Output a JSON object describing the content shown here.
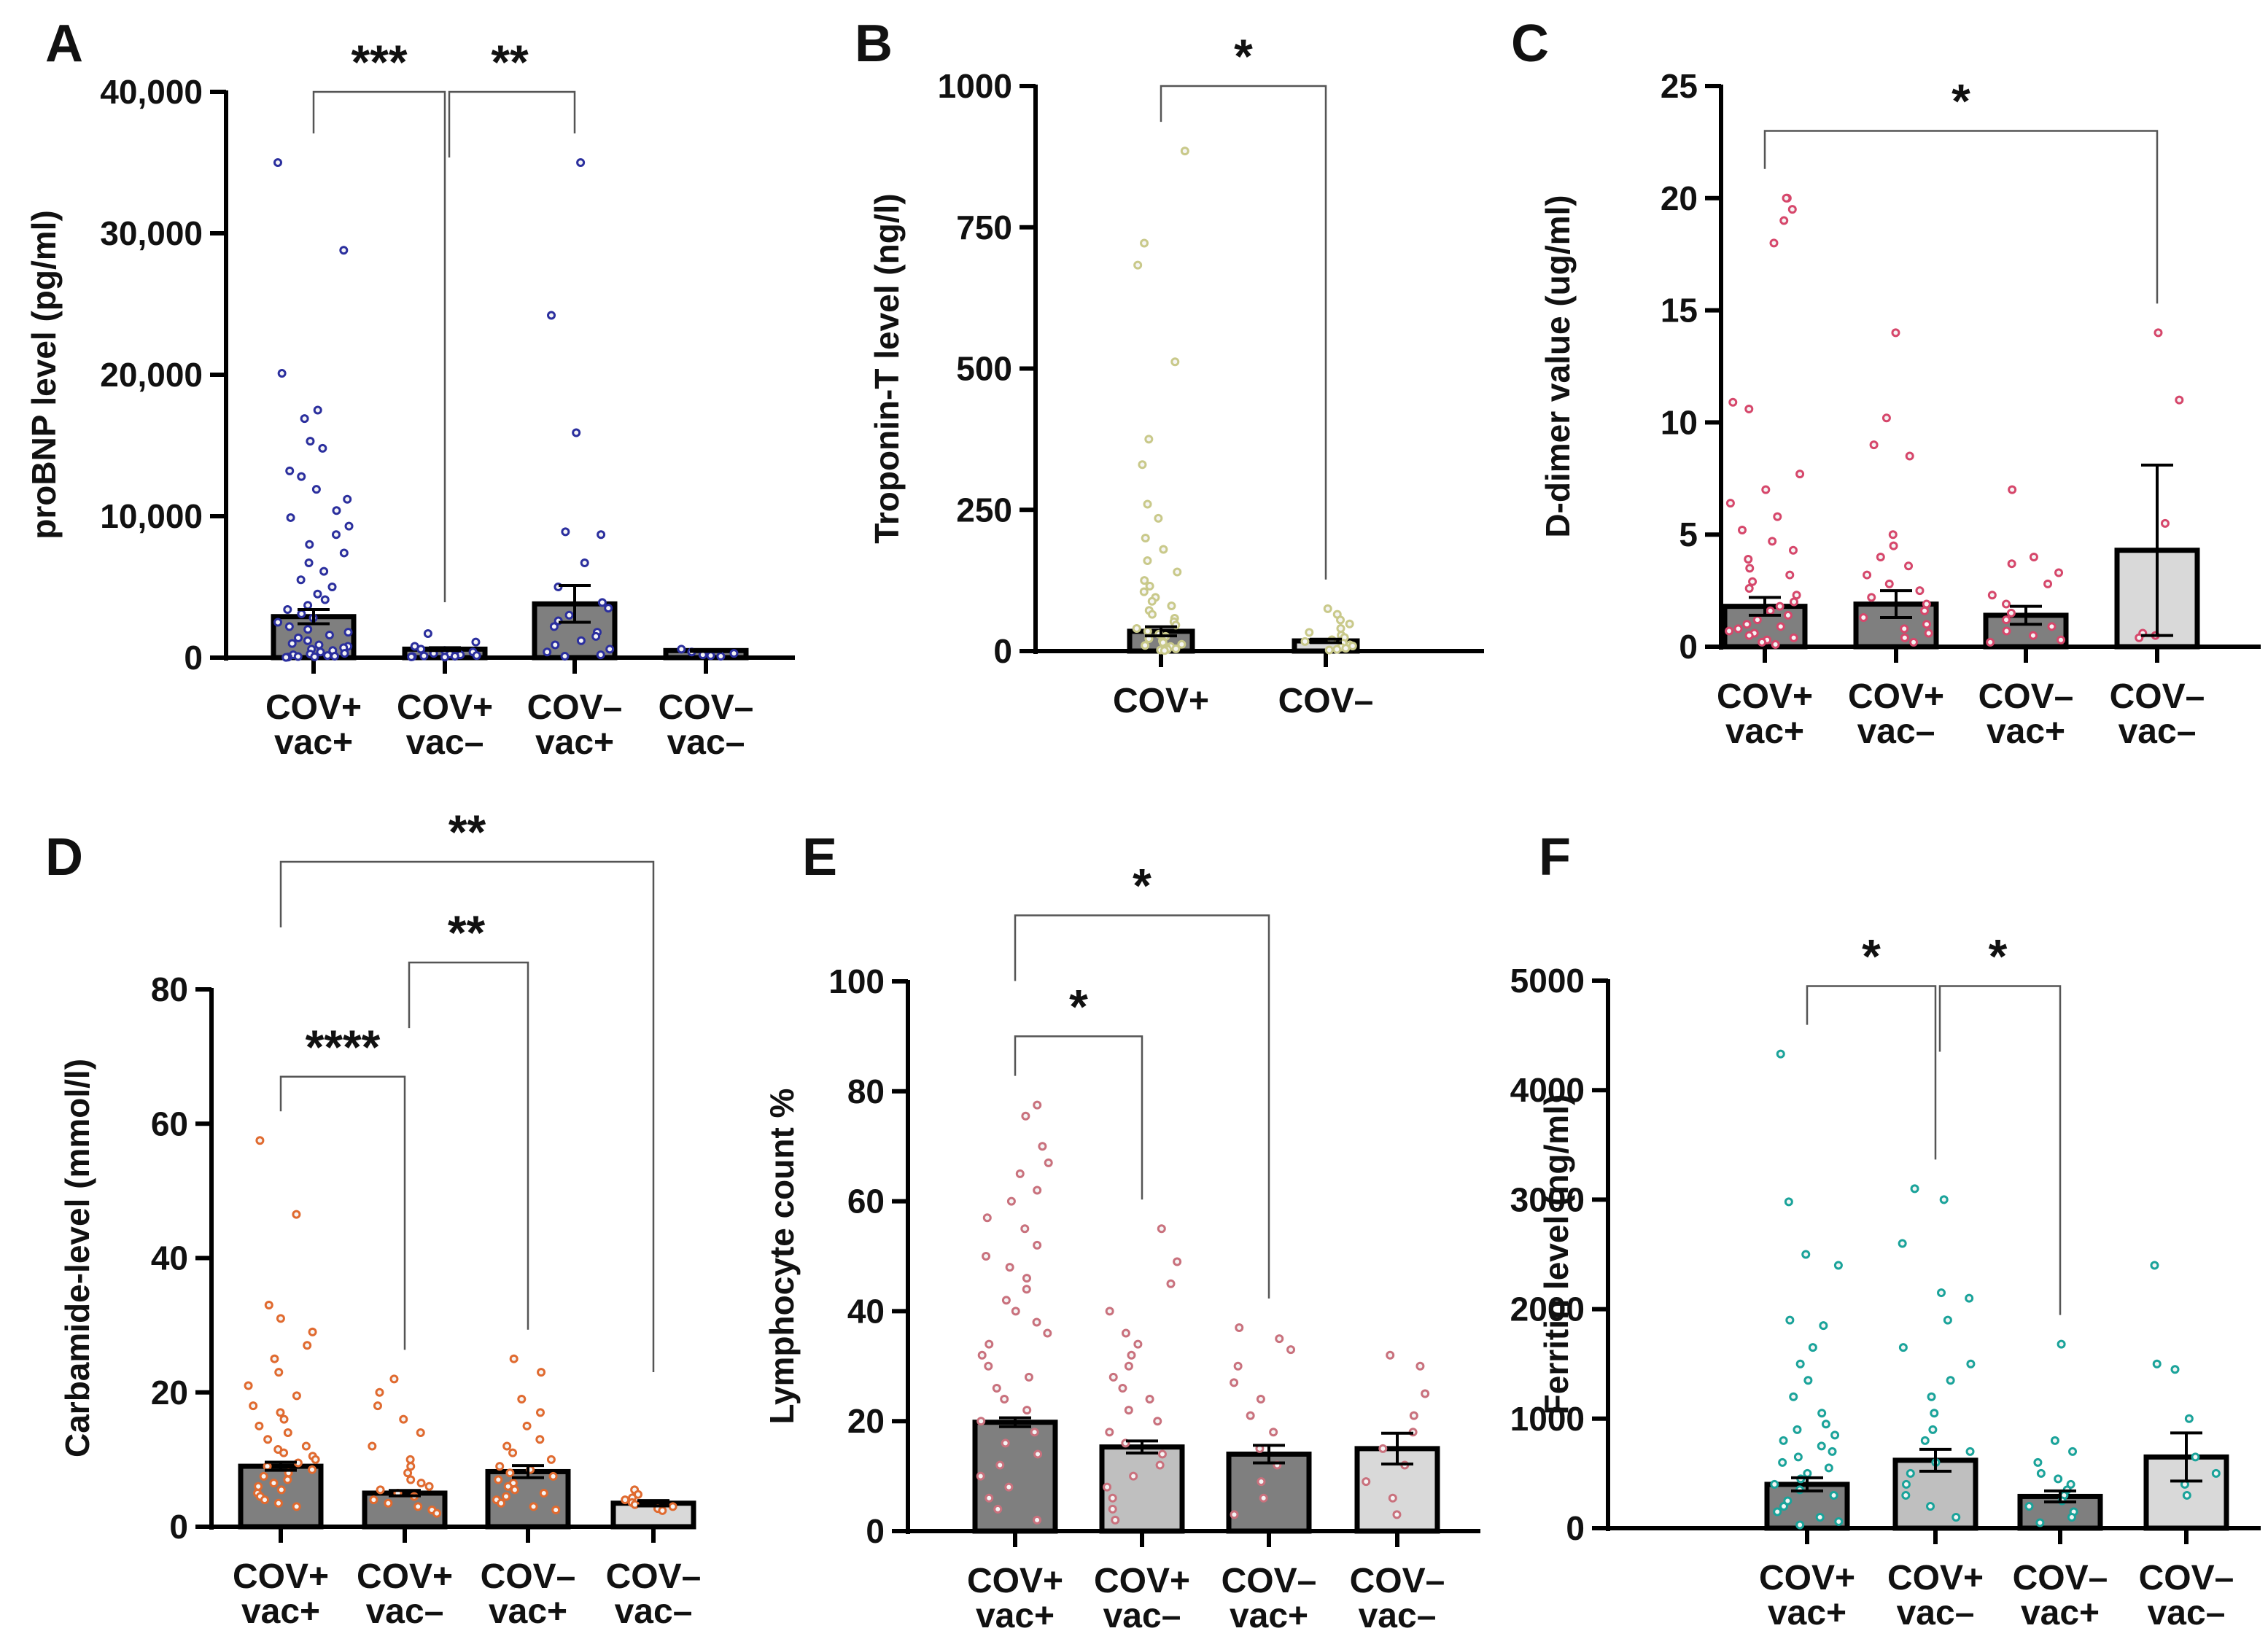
{
  "chart_data": [
    {
      "panel": "A",
      "type": "bar",
      "ylabel": "proBNP level (pg/ml)",
      "ylim": [
        0,
        40000
      ],
      "yticks": [
        0,
        10000,
        20000,
        30000,
        40000
      ],
      "ytick_labels": [
        "0",
        "10,000",
        "20,000",
        "30,000",
        "40,000"
      ],
      "categories": [
        "COV+ vac+",
        "COV+ vac–",
        "COV– vac+",
        "COV– vac–"
      ],
      "category_lines": [
        [
          "COV+",
          "vac+"
        ],
        [
          "COV+",
          "vac–"
        ],
        [
          "COV–",
          "vac+"
        ],
        [
          "COV–",
          "vac–"
        ]
      ],
      "values": [
        2900,
        600,
        3800,
        500
      ],
      "sem": [
        500,
        100,
        1300,
        60
      ],
      "bar_colors": [
        "#7f7f7f",
        "#7f7f7f",
        "#7f7f7f",
        "#7f7f7f"
      ],
      "point_color": "#2b2f9e",
      "points": [
        [
          35000,
          28800,
          20100,
          17500,
          16900,
          15300,
          14800,
          13200,
          12800,
          11900,
          11200,
          10400,
          9900,
          9300,
          8700,
          8000,
          7400,
          6700,
          6100,
          5500,
          5000,
          4500,
          4100,
          3700,
          3400,
          3100,
          2800,
          2500,
          2200,
          2000,
          1800,
          1600,
          1400,
          1200,
          1000,
          900,
          800,
          700,
          600,
          500,
          400,
          300,
          250,
          200,
          150,
          100,
          80,
          60,
          40,
          20
        ],
        [
          1700,
          1100,
          800,
          600,
          500,
          400,
          300,
          250,
          200,
          150,
          120,
          100,
          80,
          60,
          40
        ],
        [
          35000,
          24200,
          15900,
          8900,
          8700,
          6700,
          5000,
          3900,
          3500,
          3000,
          2600,
          2200,
          1800,
          1500,
          1200,
          900,
          600,
          400,
          200,
          100
        ],
        [
          600,
          400,
          300,
          200,
          150,
          100
        ]
      ],
      "significance": [
        {
          "from": 0,
          "to": 1,
          "label": "***",
          "y": 40000
        },
        {
          "from": 1,
          "to": 2,
          "label": "**",
          "y": 40000
        }
      ]
    },
    {
      "panel": "B",
      "type": "bar",
      "ylabel": "Troponin-T level (ng/l)",
      "ylim": [
        0,
        1000
      ],
      "yticks": [
        0,
        250,
        500,
        750,
        1000
      ],
      "ytick_labels": [
        "0",
        "250",
        "500",
        "750",
        "1000"
      ],
      "categories": [
        "COV+",
        "COV–"
      ],
      "category_lines": [
        [
          "COV+"
        ],
        [
          "COV–"
        ]
      ],
      "values": [
        35,
        18
      ],
      "sem": [
        8,
        3
      ],
      "bar_colors": [
        "#7f7f7f",
        "#d9d9d9"
      ],
      "point_color": "#c9c98a",
      "points": [
        [
          885,
          722,
          683,
          512,
          375,
          330,
          260,
          235,
          200,
          180,
          160,
          140,
          125,
          115,
          105,
          95,
          88,
          80,
          72,
          65,
          58,
          52,
          46,
          40,
          35,
          30,
          26,
          22,
          18,
          15,
          12,
          10,
          8,
          6,
          4,
          3,
          2,
          1
        ],
        [
          75,
          65,
          55,
          48,
          40,
          33,
          28,
          24,
          20,
          17,
          14,
          11,
          9,
          7,
          5,
          3,
          2
        ]
      ],
      "significance": [
        {
          "from": 0,
          "to": 1,
          "label": "*",
          "y": 1000
        }
      ]
    },
    {
      "panel": "C",
      "type": "bar",
      "ylabel": "D-dimer value (ug/ml)",
      "ylim": [
        0,
        25
      ],
      "yticks": [
        0,
        5,
        10,
        15,
        20,
        25
      ],
      "ytick_labels": [
        "0",
        "5",
        "10",
        "15",
        "20",
        "25"
      ],
      "categories": [
        "COV+ vac+",
        "COV+ vac–",
        "COV– vac+",
        "COV– vac–"
      ],
      "category_lines": [
        [
          "COV+",
          "vac+"
        ],
        [
          "COV+",
          "vac–"
        ],
        [
          "COV–",
          "vac+"
        ],
        [
          "COV–",
          "vac–"
        ]
      ],
      "values": [
        1.8,
        1.9,
        1.4,
        4.3
      ],
      "sem": [
        0.4,
        0.6,
        0.4,
        3.8
      ],
      "bar_colors": [
        "#7f7f7f",
        "#7f7f7f",
        "#7f7f7f",
        "#d9d9d9"
      ],
      "point_color": "#d6476b",
      "points": [
        [
          20,
          20,
          19.5,
          19,
          18,
          10.9,
          10.6,
          7.7,
          7.0,
          6.4,
          5.8,
          5.2,
          4.7,
          4.3,
          3.9,
          3.5,
          3.2,
          2.9,
          2.6,
          2.3,
          2.0,
          1.8,
          1.6,
          1.4,
          1.2,
          1.0,
          0.9,
          0.8,
          0.7,
          0.6,
          0.5,
          0.4,
          0.3,
          0.2,
          0.1
        ],
        [
          14,
          10.2,
          9,
          8.5,
          5.0,
          4.5,
          4.0,
          3.6,
          3.2,
          2.8,
          2.5,
          2.2,
          1.9,
          1.6,
          1.3,
          1.0,
          0.8,
          0.6,
          0.4,
          0.2
        ],
        [
          7,
          4.0,
          3.7,
          3.3,
          2.8,
          2.3,
          1.9,
          1.5,
          1.2,
          0.9,
          0.7,
          0.5,
          0.3,
          0.2
        ],
        [
          14,
          11,
          5.5,
          0.6,
          0.5,
          0.4
        ]
      ],
      "significance": [
        {
          "from": 0,
          "to": 3,
          "label": "*",
          "y": 23
        }
      ]
    },
    {
      "panel": "D",
      "type": "bar",
      "ylabel": "Carbamide-level (mmol/l)",
      "ylim": [
        0,
        80
      ],
      "yticks": [
        0,
        20,
        40,
        60,
        80
      ],
      "ytick_labels": [
        "0",
        "20",
        "40",
        "60",
        "80"
      ],
      "categories": [
        "COV+ vac+",
        "COV+ vac–",
        "COV– vac+",
        "COV– vac–"
      ],
      "category_lines": [
        [
          "COV+",
          "vac+"
        ],
        [
          "COV+",
          "vac–"
        ],
        [
          "COV–",
          "vac+"
        ],
        [
          "COV–",
          "vac–"
        ]
      ],
      "values": [
        9,
        5,
        8.2,
        3.5
      ],
      "sem": [
        0.6,
        0.4,
        0.9,
        0.4
      ],
      "bar_colors": [
        "#7f7f7f",
        "#7f7f7f",
        "#7f7f7f",
        "#d9d9d9"
      ],
      "point_color": "#e06a2f",
      "points": [
        [
          57.5,
          46.5,
          33,
          31,
          29,
          27,
          25,
          23,
          21,
          19.5,
          18,
          17,
          16,
          15,
          14,
          13,
          12,
          11.5,
          11,
          10.5,
          10,
          9.5,
          9,
          8.5,
          8,
          7.5,
          7,
          6.5,
          6,
          5.5,
          5,
          4.5,
          4,
          3.5,
          3
        ],
        [
          22,
          20,
          18,
          16,
          14,
          12,
          10,
          9,
          8,
          7,
          6.5,
          6,
          5.5,
          5,
          4.5,
          4,
          3.5,
          3,
          2.5,
          2
        ],
        [
          25,
          23,
          19,
          17,
          15,
          13,
          12,
          11,
          10,
          9,
          8.5,
          8,
          7.5,
          7,
          6.5,
          6,
          5.5,
          5,
          4.5,
          4,
          3.5,
          3,
          2.5
        ],
        [
          5.5,
          4.8,
          4.3,
          4.0,
          3.6,
          3.3,
          3.0,
          2.7,
          2.4
        ]
      ],
      "significance": [
        {
          "from": 0,
          "to": 1,
          "label": "****",
          "y": 67
        },
        {
          "from": 1,
          "to": 2,
          "label": "**",
          "y": 84
        },
        {
          "from": 0,
          "to": 3,
          "label": "**",
          "y": 99
        }
      ]
    },
    {
      "panel": "E",
      "type": "bar",
      "ylabel": "Lymphocyte count %",
      "ylim": [
        0,
        100
      ],
      "yticks": [
        0,
        20,
        40,
        60,
        80,
        100
      ],
      "ytick_labels": [
        "0",
        "20",
        "40",
        "60",
        "80",
        "100"
      ],
      "categories": [
        "COV+ vac+",
        "COV+ vac–",
        "COV– vac+",
        "COV– vac–"
      ],
      "category_lines": [
        [
          "COV+",
          "vac+"
        ],
        [
          "COV+",
          "vac–"
        ],
        [
          "COV–",
          "vac+"
        ],
        [
          "COV–",
          "vac–"
        ]
      ],
      "values": [
        19.8,
        15.3,
        14,
        15
      ],
      "sem": [
        0.8,
        1.1,
        1.6,
        2.8
      ],
      "bar_colors": [
        "#7f7f7f",
        "#bfbfbf",
        "#7f7f7f",
        "#d9d9d9"
      ],
      "point_color": "#c9717d",
      "points": [
        [
          77.5,
          75.5,
          70,
          67,
          65,
          62,
          60,
          57,
          55,
          52,
          50,
          48,
          46,
          44,
          42,
          40,
          38,
          36,
          34,
          32,
          30,
          28,
          26,
          24,
          22,
          20,
          18,
          16,
          14,
          12,
          10,
          8,
          6,
          4,
          2
        ],
        [
          55,
          49,
          45,
          40,
          36,
          34,
          32,
          30,
          28,
          26,
          24,
          22,
          20,
          18,
          16,
          14,
          12,
          10,
          8,
          6,
          4,
          2
        ],
        [
          37,
          35,
          33,
          30,
          27,
          24,
          21,
          18,
          15,
          12,
          9,
          6,
          3
        ],
        [
          32,
          30,
          25,
          21,
          18,
          15,
          12,
          9,
          6,
          3
        ]
      ],
      "significance": [
        {
          "from": 0,
          "to": 1,
          "label": "*",
          "y": 90
        },
        {
          "from": 0,
          "to": 2,
          "label": "*",
          "y": 112
        }
      ]
    },
    {
      "panel": "F",
      "type": "bar",
      "ylabel": "Ferritin level (ng/ml)",
      "ylim": [
        0,
        5000
      ],
      "yticks": [
        0,
        1000,
        2000,
        3000,
        4000,
        5000
      ],
      "ytick_labels": [
        "0",
        "1000",
        "2000",
        "3000",
        "4000",
        "5000"
      ],
      "categories": [
        "COV+ vac+",
        "COV+ vac–",
        "COV– vac+",
        "COV– vac–"
      ],
      "category_lines": [
        [
          "COV+",
          "vac+"
        ],
        [
          "COV+",
          "vac–"
        ],
        [
          "COV–",
          "vac+"
        ],
        [
          "COV–",
          "vac–"
        ]
      ],
      "values": [
        400,
        620,
        290,
        650
      ],
      "sem": [
        60,
        100,
        50,
        220
      ],
      "bar_colors": [
        "#7f7f7f",
        "#bfbfbf",
        "#7f7f7f",
        "#d9d9d9"
      ],
      "point_color": "#1aa39a",
      "points": [
        [
          4330,
          2980,
          2500,
          2400,
          1900,
          1850,
          1650,
          1500,
          1350,
          1200,
          1050,
          950,
          900,
          850,
          800,
          750,
          700,
          650,
          600,
          550,
          500,
          450,
          400,
          350,
          300,
          250,
          200,
          150,
          100,
          60,
          30
        ],
        [
          3100,
          3000,
          2600,
          2150,
          2100,
          1900,
          1650,
          1500,
          1350,
          1200,
          1050,
          900,
          800,
          700,
          600,
          500,
          400,
          300,
          200,
          100
        ],
        [
          1680,
          800,
          700,
          600,
          500,
          450,
          400,
          350,
          300,
          250,
          200,
          150,
          100,
          50
        ],
        [
          2400,
          1500,
          1450,
          1000,
          650,
          500,
          400,
          300
        ]
      ],
      "significance": [
        {
          "from": 0,
          "to": 1,
          "label": "*",
          "y": 4950
        },
        {
          "from": 1,
          "to": 2,
          "label": "*",
          "y": 4950
        }
      ]
    }
  ]
}
